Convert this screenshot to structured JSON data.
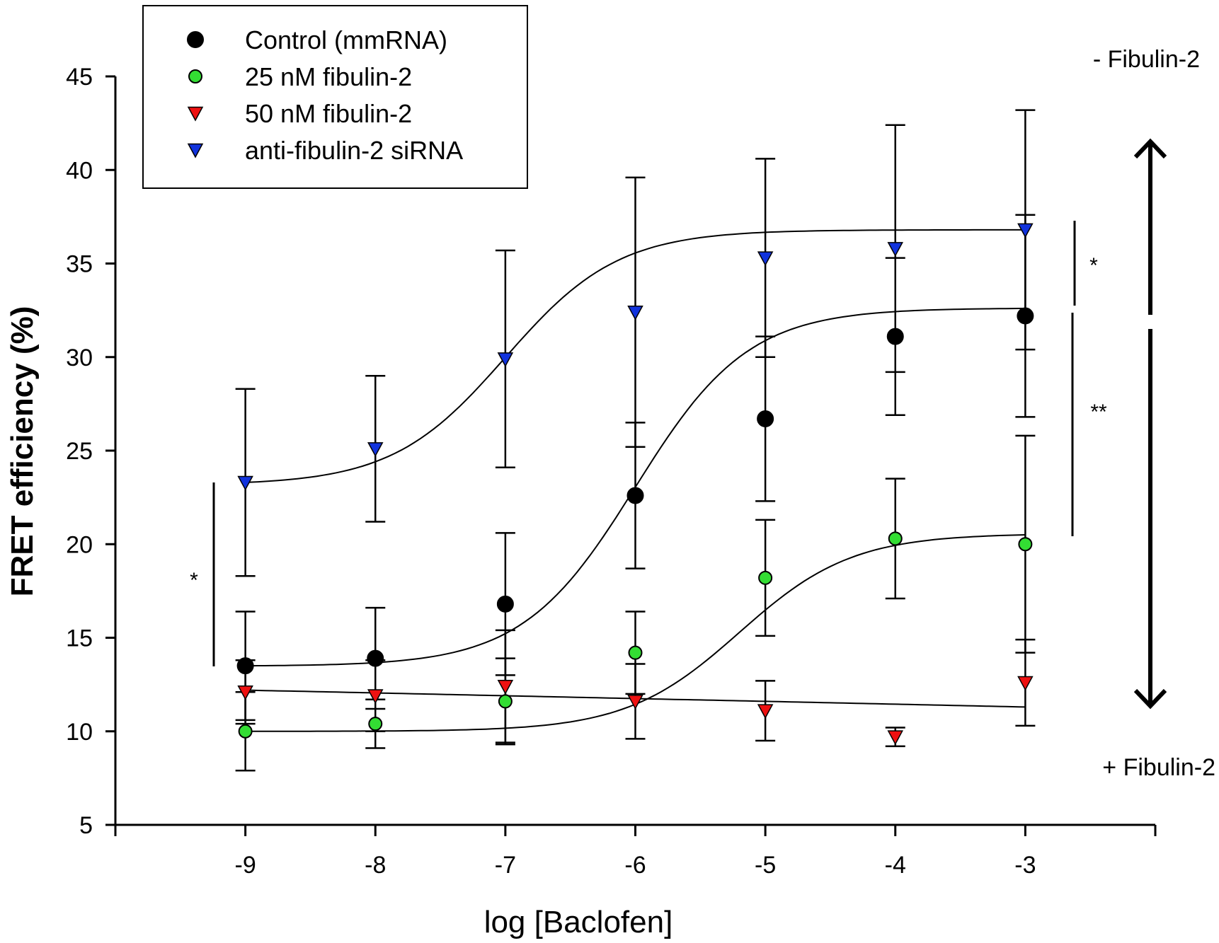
{
  "chart_data": {
    "type": "scatter",
    "title": "",
    "xlabel": "log [Baclofen]",
    "ylabel": "FRET efficiency (%)",
    "xlim": [
      -10,
      -2
    ],
    "ylim": [
      5,
      45
    ],
    "x_ticks": [
      -9,
      -8,
      -7,
      -6,
      -5,
      -4,
      -3
    ],
    "x_tick_labels": [
      "-9",
      "-8",
      "-7",
      "-6",
      "-5",
      "-4",
      "-3"
    ],
    "y_ticks": [
      5,
      10,
      15,
      20,
      25,
      30,
      35,
      40,
      45
    ],
    "y_tick_labels": [
      "5",
      "10",
      "15",
      "20",
      "25",
      "30",
      "35",
      "40",
      "45"
    ],
    "legend_position": "top-left",
    "series": [
      {
        "name": "Control (mmRNA)",
        "marker": "circle",
        "color": "#000000",
        "x": [
          -9,
          -8,
          -7,
          -6,
          -5,
          -4,
          -3
        ],
        "y": [
          13.5,
          13.9,
          16.8,
          22.6,
          26.7,
          31.1,
          32.2
        ],
        "err": [
          2.9,
          2.7,
          3.8,
          3.9,
          4.4,
          4.2,
          5.4
        ],
        "fit": [
          -9,
          13.5,
          32.6,
          -6,
          1
        ]
      },
      {
        "name": "25 nM fibulin-2",
        "marker": "circle",
        "color": "#33dd33",
        "x": [
          -9,
          -8,
          -7,
          -6,
          -5,
          -4,
          -3
        ],
        "y": [
          10.0,
          10.4,
          11.6,
          14.2,
          18.2,
          20.3,
          20.0
        ],
        "err": [
          2.1,
          1.3,
          2.3,
          2.2,
          3.1,
          3.2,
          5.8
        ],
        "fit": [
          -9,
          10.0,
          20.5,
          -5.2,
          1
        ]
      },
      {
        "name": "50 nM fibulin-2",
        "marker": "triangle-down",
        "color": "#ee1111",
        "x": [
          -9,
          -8,
          -7,
          -6,
          -5,
          -4,
          -3
        ],
        "y": [
          12.1,
          11.9,
          12.4,
          11.6,
          11.1,
          9.7,
          12.6
        ],
        "err": [
          1.7,
          1.9,
          3.0,
          2.0,
          1.6,
          0.5,
          2.3
        ],
        "fit": [
          -9,
          12.2,
          11.3,
          -3,
          0
        ]
      },
      {
        "name": "anti-fibulin-2 siRNA",
        "marker": "triangle-down",
        "color": "#1133dd",
        "x": [
          -9,
          -8,
          -7,
          -6,
          -5,
          -4,
          -3
        ],
        "y": [
          23.3,
          25.1,
          29.9,
          32.4,
          35.3,
          35.8,
          36.8
        ],
        "err": [
          5.0,
          3.9,
          5.8,
          7.2,
          5.3,
          6.6,
          6.4
        ],
        "fit": [
          -9,
          23.3,
          36.8,
          -7.0,
          1
        ]
      }
    ],
    "annotations": {
      "top_right": "- Fibulin-2",
      "bottom_right": "+ Fibulin-2",
      "sig_left": "*",
      "sig_right_upper": "*",
      "sig_right_lower": "**"
    }
  }
}
